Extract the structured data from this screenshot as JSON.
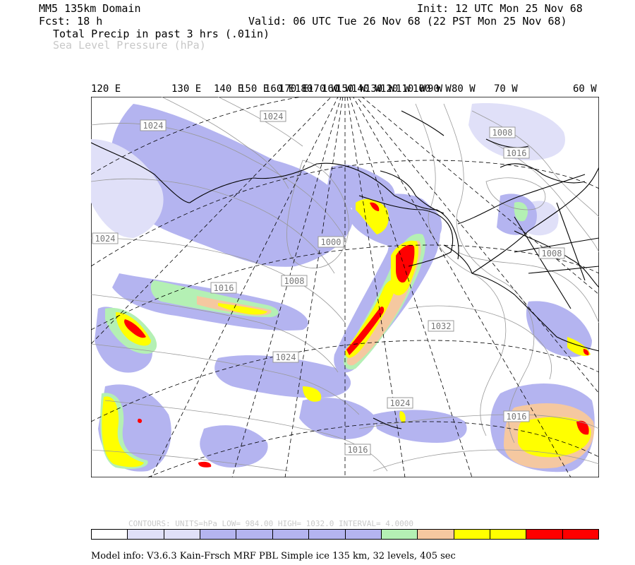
{
  "header": {
    "domain": "MM5 135km Domain",
    "init": "Init: 12 UTC Mon 25 Nov 68",
    "fcst": "Fcst:   18 h",
    "valid": "Valid: 06 UTC Tue 26 Nov 68 (22 PST Mon 25 Nov 68)",
    "field1": "Total Precip in past 3 hrs (.01in)",
    "field2": "Sea Level Pressure (hPa)"
  },
  "longitude_labels": [
    "120 E",
    "130 E",
    "140 E",
    "150 E",
    "160 E",
    "170 E",
    "180",
    "170 W",
    "160 W",
    "150 W",
    "140 W",
    "130 W",
    "120 W",
    "110 W",
    "100 W",
    "90 W",
    "80 W",
    "70 W",
    "60 W"
  ],
  "isobar_labels": [
    "1024",
    "1024",
    "1024",
    "1008",
    "1016",
    "1000",
    "1008",
    "1008",
    "1016",
    "1032",
    "1024",
    "1024",
    "1016",
    "1016"
  ],
  "contours_info": "CONTOURS:  UNITS=hPa  LOW=  984.00       HIGH=  1032.0       INTERVAL=    4.0000",
  "model_info": "Model info: V3.6.3 Kain-Frsch MRF PBL    Simple ice  135 km,  32 levels,  405 sec",
  "colors": {
    "very_light": "#e0e0f8",
    "light": "#b4b4f0",
    "green": "#b4f0b4",
    "orange": "#f5c8a0",
    "yellow": "#ffff00",
    "red": "#ff0000"
  },
  "colorbar": [
    "#ffffff",
    "#e0e0f8",
    "#e0e0f8",
    "#b4b4f0",
    "#b4b4f0",
    "#b4b4f0",
    "#b4b4f0",
    "#b4b4f0",
    "#b4f0b4",
    "#f5c8a0",
    "#ffff00",
    "#ffff00",
    "#ff0000",
    "#ff0000"
  ]
}
